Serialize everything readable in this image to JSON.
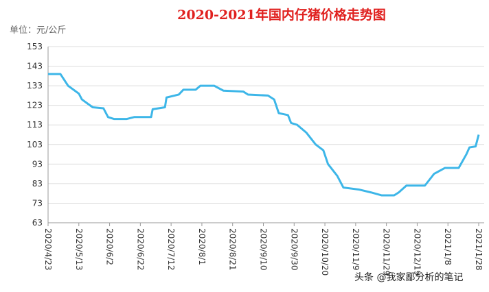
{
  "chart_data": {
    "type": "line",
    "title": "2020-2021年国内仔猪价格走势图",
    "y_label": "单位：元/公斤",
    "annotation": "头条 @我家鄙分析的笔记",
    "x": [
      "2020/4/23",
      "2020/5/1",
      "2020/5/6",
      "2020/5/13",
      "2020/5/15",
      "2020/5/22",
      "2020/5/29",
      "2020/6/1",
      "2020/6/5",
      "2020/6/13",
      "2020/6/18",
      "2020/6/29",
      "2020/6/30",
      "2020/7/8",
      "2020/7/9",
      "2020/7/17",
      "2020/7/20",
      "2020/7/28",
      "2020/7/31",
      "2020/8/9",
      "2020/8/15",
      "2020/8/28",
      "2020/8/31",
      "2020/9/13",
      "2020/9/17",
      "2020/9/20",
      "2020/9/26",
      "2020/9/28",
      "2020/10/2",
      "2020/10/8",
      "2020/10/14",
      "2020/10/19",
      "2020/10/22",
      "2020/10/28",
      "2020/11/1",
      "2020/11/11",
      "2020/11/19",
      "2020/11/26",
      "2020/12/4",
      "2020/12/7",
      "2020/12/12",
      "2020/12/24",
      "2020/12/30",
      "2021/1/6",
      "2021/1/15",
      "2021/1/20",
      "2021/1/22",
      "2021/1/26",
      "2021/1/28"
    ],
    "series": [
      {
        "name": "仔猪价格",
        "color": "#3db6e8",
        "values": [
          139,
          139,
          133,
          129,
          126,
          122,
          121.5,
          117,
          116,
          116,
          117,
          117,
          121,
          122,
          127,
          128.5,
          131,
          131,
          133,
          133,
          130.5,
          130,
          128.5,
          128,
          126,
          119,
          118,
          114,
          113,
          109,
          103,
          100,
          93,
          87,
          81,
          80,
          78.5,
          77,
          77,
          78.5,
          82,
          82,
          88,
          91,
          91,
          98,
          101.5,
          102,
          108
        ]
      }
    ],
    "xlim": [
      "2020/4/23",
      "2021/1/28"
    ],
    "xticks": [
      "2020/4/23",
      "2020/5/13",
      "2020/6/2",
      "2020/6/22",
      "2020/7/12",
      "2020/8/1",
      "2020/8/21",
      "2020/9/10",
      "2020/9/30",
      "2020/10/20",
      "2020/11/9",
      "2020/11/29",
      "2020/12/19",
      "2021/1/8",
      "2021/1/28"
    ],
    "ylim": [
      63,
      153
    ],
    "yticks": [
      63,
      73,
      83,
      93,
      103,
      113,
      123,
      133,
      143,
      153
    ],
    "grid": true
  }
}
